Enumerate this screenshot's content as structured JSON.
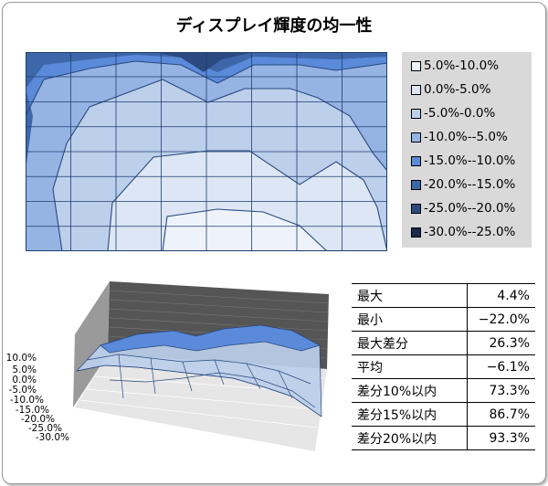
{
  "title": "ディスプレイ輝度の均一性",
  "chart_data": [
    {
      "type": "contour",
      "title": "ディスプレイ輝度の均一性",
      "grid": {
        "columns": 8,
        "rows": 8
      },
      "legend": {
        "position": "right",
        "entries": [
          {
            "label": "5.0%-10.0%",
            "color": "#eef3fb"
          },
          {
            "label": "0.0%-5.0%",
            "color": "#dce6f4"
          },
          {
            "label": "-5.0%-0.0%",
            "color": "#bccfeb"
          },
          {
            "label": "-10.0%--5.0%",
            "color": "#95b3e3"
          },
          {
            "label": "-15.0%--10.0%",
            "color": "#5a8ad9"
          },
          {
            "label": "-20.0%--15.0%",
            "color": "#3d67a8"
          },
          {
            "label": "-25.0%--20.0%",
            "color": "#2a4a80"
          },
          {
            "label": "-30.0%--25.0%",
            "color": "#172b4d"
          }
        ]
      }
    },
    {
      "type": "surface",
      "z_ticks": [
        "10.0%",
        "5.0%",
        "0.0%",
        "-5.0%",
        "-10.0%",
        "-15.0%",
        "-20.0%",
        "-25.0%",
        "-30.0%"
      ],
      "zlim": [
        -30,
        10
      ]
    }
  ],
  "stats": [
    {
      "label": "最大",
      "value": "4.4%"
    },
    {
      "label": "最小",
      "value": "−22.0%"
    },
    {
      "label": "最大差分",
      "value": "26.3%"
    },
    {
      "label": "平均",
      "value": "−6.1%"
    },
    {
      "label": "差分10%以内",
      "value": "73.3%"
    },
    {
      "label": "差分15%以内",
      "value": "86.7%"
    },
    {
      "label": "差分20%以内",
      "value": "93.3%"
    }
  ]
}
